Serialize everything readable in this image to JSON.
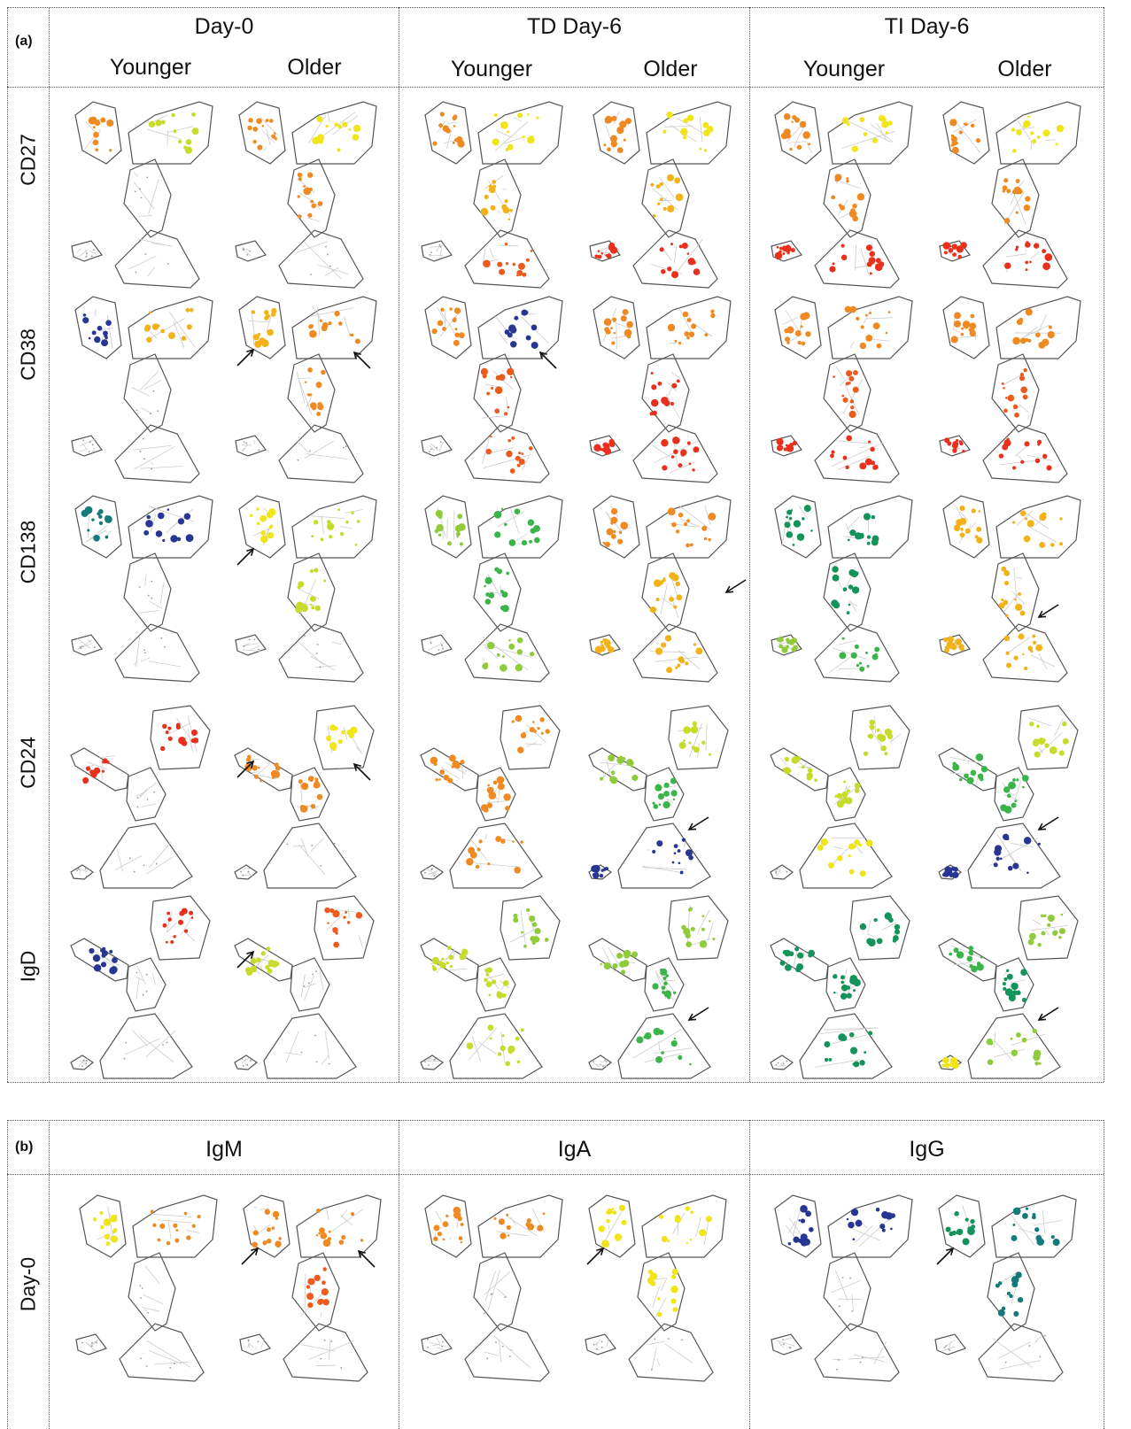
{
  "panel_a": {
    "label": "(a)",
    "groups": [
      "Day-0",
      "TD Day-6",
      "TI Day-6"
    ],
    "subgroups": [
      "Younger",
      "Older"
    ],
    "rows": [
      "CD27",
      "CD38",
      "CD138",
      "CD24",
      "IgD"
    ]
  },
  "panel_b": {
    "label": "(b)",
    "groups": [
      "IgM",
      "IgA",
      "IgG"
    ],
    "rows": [
      "Day-0"
    ]
  },
  "marker_colors": {
    "red": "#e8301c",
    "orange_red": "#ec5a1e",
    "orange": "#ef8a22",
    "amber": "#f2b21a",
    "yellow": "#f0e41a",
    "yellow_green": "#c7dc2a",
    "light_green": "#8fcb3a",
    "green": "#3bb54a",
    "teal_green": "#14945a",
    "teal": "#157a7a",
    "blue": "#283593",
    "grey": "#bbbbbb"
  },
  "cells_a": [
    [
      "orange|yellow_green|grey|grey|grey",
      "orange|yellow|orange|grey|grey",
      "orange|yellow|amber|orange_red|grey",
      "orange|yellow|amber|red|red",
      "orange|yellow|orange|red|red",
      "orange|yellow|orange|red|red"
    ],
    [
      "blue|amber|grey|grey|grey",
      "amber|orange|orange|grey|grey",
      "orange|blue|orange_red|orange_red|grey",
      "orange|orange|red|red|red",
      "orange|orange|orange_red|red|red",
      "orange|orange|orange_red|red|red"
    ],
    [
      "teal|blue|grey|grey|grey",
      "yellow|yellow_green|yellow_green|grey|grey",
      "light_green|green|green|light_green|grey",
      "orange|orange|amber|amber|amber",
      "teal_green|teal_green|teal_green|green|light_green",
      "amber|amber|amber|amber|amber"
    ],
    [
      "red|red|grey|grey|grey",
      "orange|yellow|orange|grey|grey",
      "orange|orange|orange|orange|grey",
      "light_green|yellow_green|green|blue|blue",
      "yellow_green|yellow_green|yellow_green|yellow|grey",
      "green|yellow_green|green|blue|blue"
    ],
    [
      "blue|red|grey|grey|grey",
      "yellow_green|orange_red|grey|grey|grey",
      "yellow_green|light_green|yellow_green|yellow_green|grey",
      "light_green|light_green|green|green|grey",
      "teal_green|teal_green|teal_green|teal_green|grey",
      "green|light_green|teal_green|light_green|yellow"
    ]
  ],
  "cells_b": [
    [
      "yellow|orange|grey|grey|grey",
      "orange|orange|orange_red|grey|grey",
      "orange|orange|grey|grey|grey",
      "yellow|yellow|yellow|grey|grey",
      "blue|blue|grey|grey|grey",
      "teal_green|teal|teal|grey|grey"
    ]
  ],
  "arrows_a": [
    {
      "row": 1,
      "col": 1,
      "items": [
        "ne-left",
        "nw-right"
      ]
    },
    {
      "row": 1,
      "col": 2,
      "items": [
        "nw-right"
      ]
    },
    {
      "row": 2,
      "col": 1,
      "items": [
        "ne-left"
      ]
    },
    {
      "row": 2,
      "col": 3,
      "items": [
        "sw-right"
      ]
    },
    {
      "row": 2,
      "col": 5,
      "items": [
        "sw-low"
      ]
    },
    {
      "row": 3,
      "col": 1,
      "items": [
        "ne-left",
        "nw-right"
      ]
    },
    {
      "row": 3,
      "col": 3,
      "items": [
        "sw-low"
      ]
    },
    {
      "row": 3,
      "col": 5,
      "items": [
        "sw-low"
      ]
    },
    {
      "row": 4,
      "col": 1,
      "items": [
        "ne-left"
      ]
    },
    {
      "row": 4,
      "col": 3,
      "items": [
        "sw-low"
      ]
    },
    {
      "row": 4,
      "col": 5,
      "items": [
        "sw-low"
      ]
    }
  ],
  "arrows_b": [
    {
      "row": 0,
      "col": 1,
      "items": [
        "ne-left",
        "nw-right"
      ]
    },
    {
      "row": 0,
      "col": 3,
      "items": [
        "ne-left"
      ]
    },
    {
      "row": 0,
      "col": 5,
      "items": [
        "ne-left"
      ]
    }
  ]
}
